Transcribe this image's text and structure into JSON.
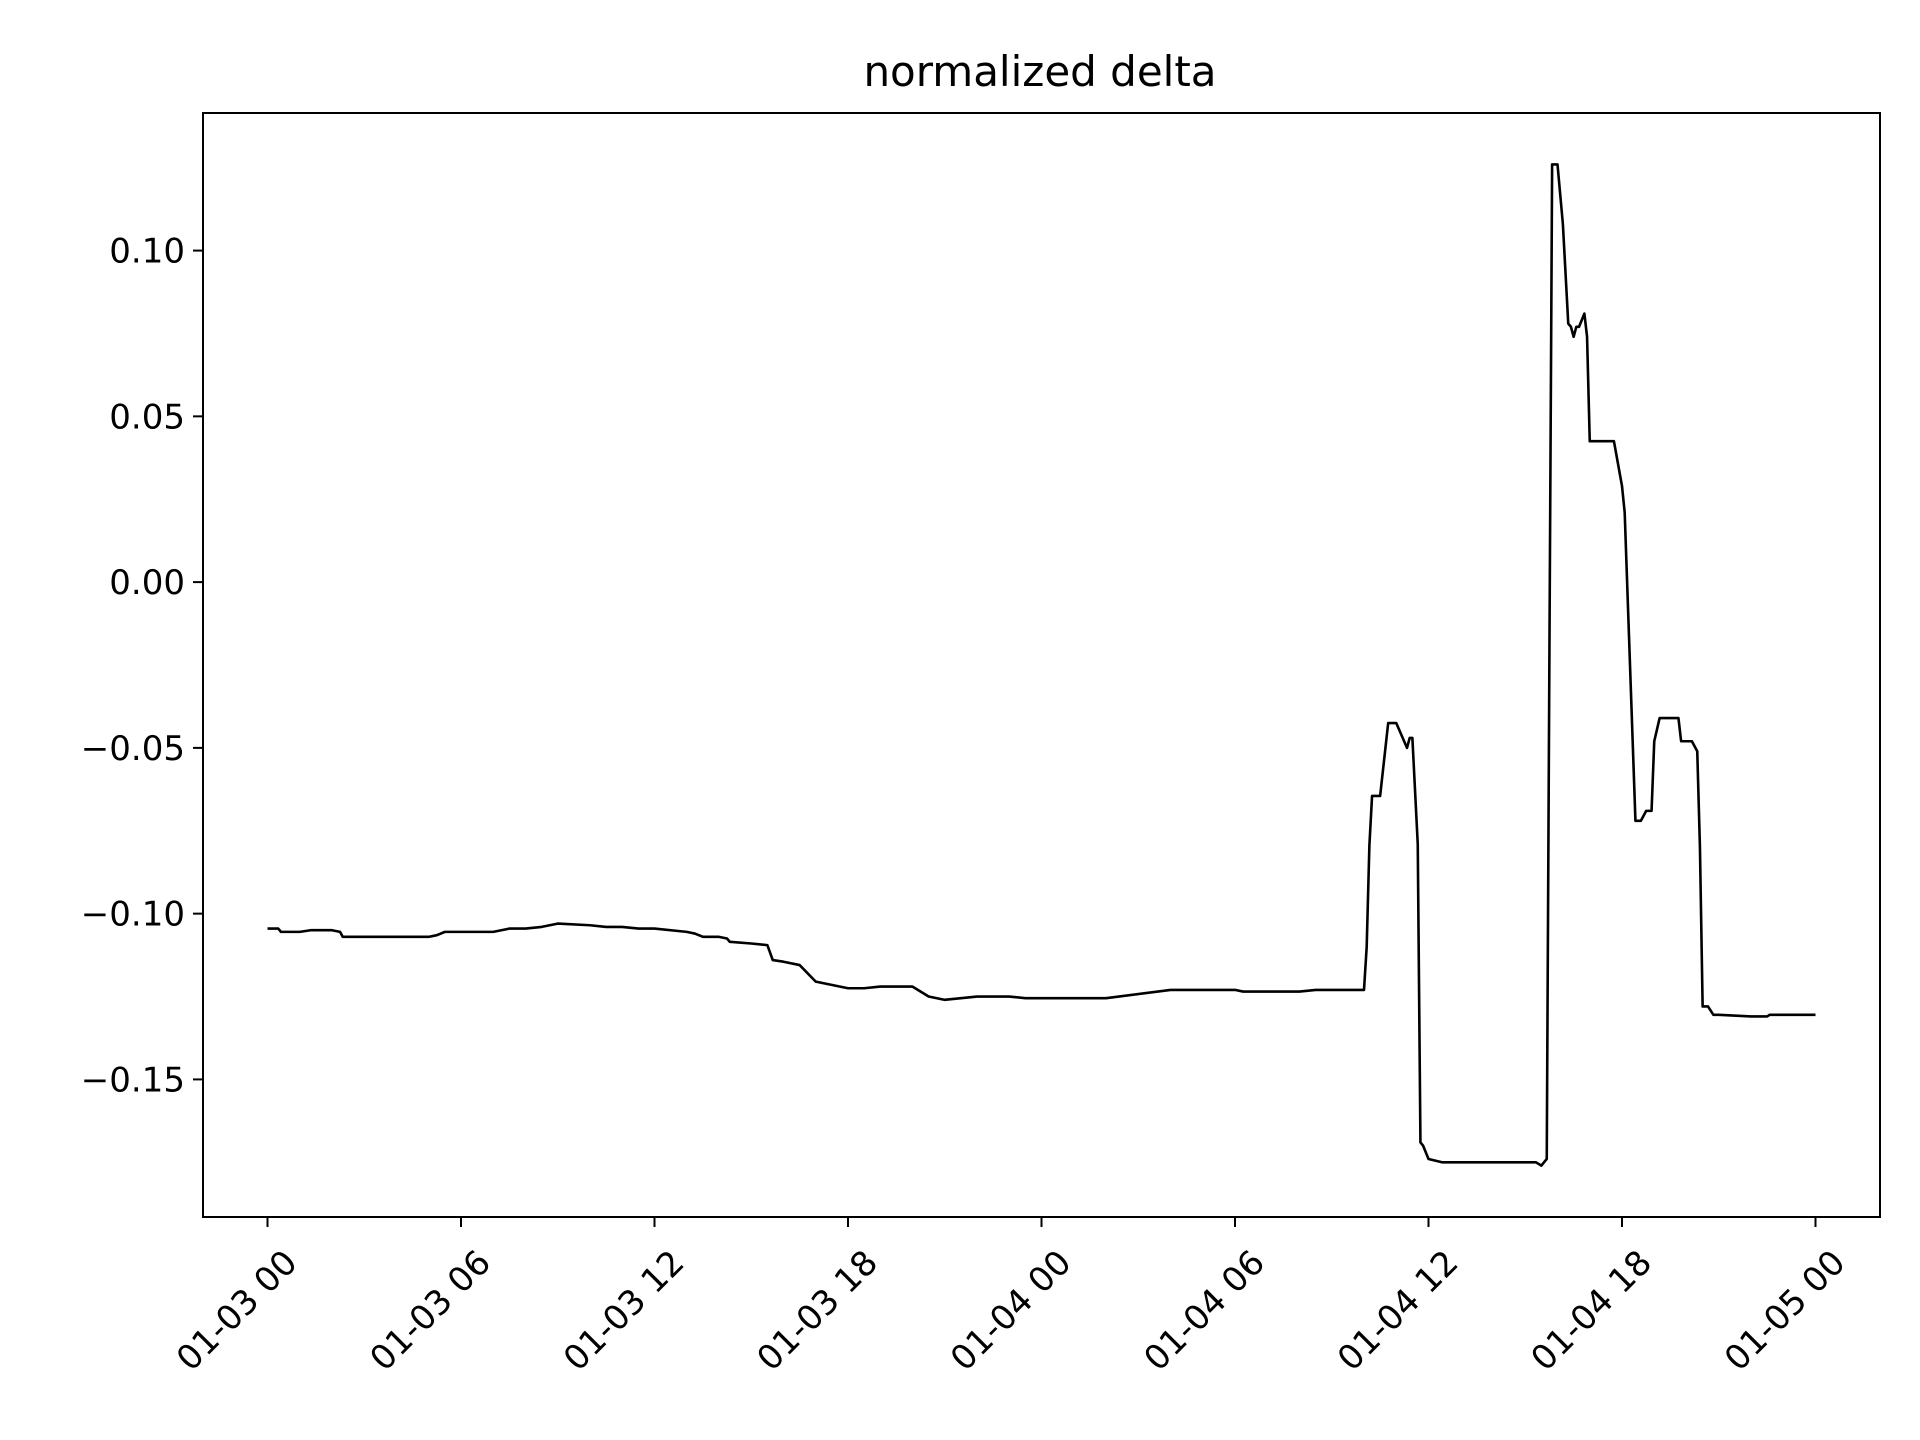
{
  "chart_data": {
    "type": "line",
    "title": "normalized delta",
    "xlabel": "",
    "ylabel": "",
    "x_axis_type": "datetime",
    "xlim": [
      "01-02 22:00",
      "01-05 02:00"
    ],
    "ylim": [
      -0.1915,
      0.1415
    ],
    "grid": false,
    "legend": "none",
    "line_color": "#000000",
    "x_ticks": [
      {
        "x": "01-03 00:00",
        "label": "01-03 00"
      },
      {
        "x": "01-03 06:00",
        "label": "01-03 06"
      },
      {
        "x": "01-03 12:00",
        "label": "01-03 12"
      },
      {
        "x": "01-03 18:00",
        "label": "01-03 18"
      },
      {
        "x": "01-04 00:00",
        "label": "01-04 00"
      },
      {
        "x": "01-04 06:00",
        "label": "01-04 06"
      },
      {
        "x": "01-04 12:00",
        "label": "01-04 12"
      },
      {
        "x": "01-04 18:00",
        "label": "01-04 18"
      },
      {
        "x": "01-05 00:00",
        "label": "01-05 00"
      }
    ],
    "y_ticks": [
      {
        "y": 0.1,
        "label": "0.10"
      },
      {
        "y": 0.05,
        "label": "0.05"
      },
      {
        "y": 0.0,
        "label": "0.00"
      },
      {
        "y": -0.05,
        "label": "−0.05"
      },
      {
        "y": -0.1,
        "label": "−0.10"
      },
      {
        "y": -0.15,
        "label": "−0.15"
      }
    ],
    "series": [
      {
        "x": [
          "01-03 00:00",
          "01-03 00:20",
          "01-03 00:25",
          "01-03 01:00",
          "01-03 01:20",
          "01-03 02:00",
          "01-03 02:15",
          "01-03 02:20",
          "01-03 03:00",
          "01-03 04:00",
          "01-03 05:00",
          "01-03 05:15",
          "01-03 05:30",
          "01-03 06:00",
          "01-03 07:00",
          "01-03 07:30",
          "01-03 08:00",
          "01-03 08:30",
          "01-03 09:00",
          "01-03 10:00",
          "01-03 10:30",
          "01-03 11:00",
          "01-03 11:30",
          "01-03 12:00",
          "01-03 13:00",
          "01-03 13:15",
          "01-03 13:30",
          "01-03 14:00",
          "01-03 14:15",
          "01-03 14:20",
          "01-03 15:00",
          "01-03 15:30",
          "01-03 15:40",
          "01-03 16:00",
          "01-03 16:30",
          "01-03 17:00",
          "01-03 18:00",
          "01-03 18:30",
          "01-03 19:00",
          "01-03 19:30",
          "01-03 20:00",
          "01-03 20:30",
          "01-03 21:00",
          "01-03 22:00",
          "01-03 23:00",
          "01-03 23:30",
          "01-03 23:45",
          "01-04 01:00",
          "01-04 02:00",
          "01-04 04:00",
          "01-04 06:00",
          "01-04 06:15",
          "01-04 07:00",
          "01-04 08:00",
          "01-04 08:30",
          "01-04 08:45",
          "01-04 09:00",
          "01-04 10:00",
          "01-04 10:05",
          "01-04 10:10",
          "01-04 10:15",
          "01-04 10:20",
          "01-04 10:30",
          "01-04 10:45",
          "01-04 10:50",
          "01-04 11:00",
          "01-04 11:20",
          "01-04 11:25",
          "01-04 11:30",
          "01-04 11:40",
          "01-04 11:45",
          "01-04 11:50",
          "01-04 11:55",
          "01-04 12:00",
          "01-04 12:25",
          "01-04 12:30",
          "01-04 12:45",
          "01-04 13:00",
          "01-04 13:10",
          "01-04 13:30",
          "01-04 14:00",
          "01-04 15:00",
          "01-04 15:20",
          "01-04 15:30",
          "01-04 15:40",
          "01-04 15:45",
          "01-04 15:50",
          "01-04 16:00",
          "01-04 16:10",
          "01-04 16:20",
          "01-04 16:25",
          "01-04 16:30",
          "01-04 16:35",
          "01-04 16:40",
          "01-04 16:50",
          "01-04 16:55",
          "01-04 17:00",
          "01-04 17:10",
          "01-04 17:15",
          "01-04 17:25",
          "01-04 17:35",
          "01-04 17:40",
          "01-04 17:45",
          "01-04 18:00",
          "01-04 18:05",
          "01-04 18:25",
          "01-04 18:35",
          "01-04 18:45",
          "01-04 18:55",
          "01-04 19:00",
          "01-04 19:10",
          "01-04 19:30",
          "01-04 19:45",
          "01-04 19:50",
          "01-04 20:10",
          "01-04 20:20",
          "01-04 20:25",
          "01-04 20:30",
          "01-04 20:40",
          "01-04 20:50",
          "01-04 21:00",
          "01-04 22:00",
          "01-04 22:30",
          "01-04 22:35",
          "01-04 23:00",
          "01-05 00:00"
        ],
        "y": [
          -0.1045,
          -0.1045,
          -0.1055,
          -0.1055,
          -0.105,
          -0.105,
          -0.1055,
          -0.107,
          -0.107,
          -0.107,
          -0.107,
          -0.1065,
          -0.1055,
          -0.1055,
          -0.1055,
          -0.1045,
          -0.1045,
          -0.104,
          -0.103,
          -0.1035,
          -0.104,
          -0.104,
          -0.1045,
          -0.1045,
          -0.1055,
          -0.106,
          -0.107,
          -0.107,
          -0.1075,
          -0.1085,
          -0.109,
          -0.1095,
          -0.114,
          -0.1145,
          -0.1155,
          -0.1205,
          -0.1225,
          -0.1225,
          -0.122,
          -0.122,
          -0.122,
          -0.125,
          -0.126,
          -0.125,
          -0.125,
          -0.1255,
          -0.1255,
          -0.1255,
          -0.1255,
          -0.123,
          -0.123,
          -0.1235,
          -0.1235,
          -0.1235,
          -0.123,
          -0.123,
          -0.123,
          -0.123,
          -0.11,
          -0.0795,
          -0.0645,
          -0.0645,
          -0.0645,
          -0.0425,
          -0.0425,
          -0.0425,
          -0.05,
          -0.047,
          -0.047,
          -0.079,
          -0.169,
          -0.17,
          -0.172,
          -0.174,
          -0.175,
          -0.175,
          -0.175,
          -0.175,
          -0.175,
          -0.175,
          -0.175,
          -0.175,
          -0.175,
          -0.176,
          -0.174,
          -0.02,
          0.126,
          0.126,
          0.108,
          0.078,
          0.077,
          0.074,
          0.077,
          0.077,
          0.081,
          0.074,
          0.0425,
          0.0425,
          0.0425,
          0.0425,
          0.0425,
          0.0425,
          0.0425,
          0.029,
          0.021,
          -0.072,
          -0.072,
          -0.069,
          -0.069,
          -0.048,
          -0.041,
          -0.041,
          -0.041,
          -0.048,
          -0.048,
          -0.051,
          -0.08,
          -0.128,
          -0.128,
          -0.1305,
          -0.1305,
          -0.131,
          -0.131,
          -0.1305,
          -0.1305,
          -0.1305
        ]
      }
    ]
  }
}
